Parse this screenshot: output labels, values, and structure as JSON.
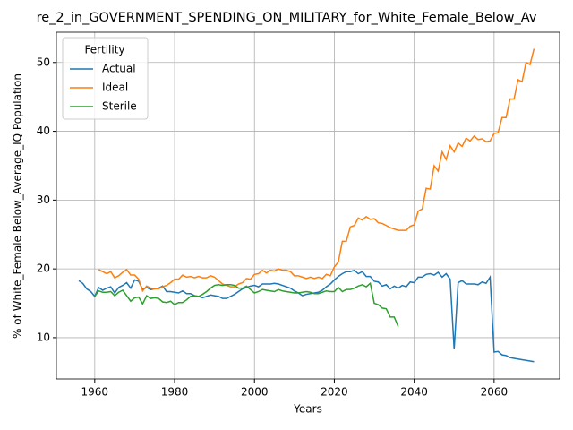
{
  "chart_data": {
    "type": "line",
    "title": "re_2_in_GOVERNMENT_SPENDING_ON_MILITARY_for_White_Female_Below_Av",
    "xlabel": "Years",
    "ylabel": "% of White_Female Below_Average_IQ Population",
    "legend_title": "Fertility",
    "legend": "upper left",
    "grid": true,
    "xlim": [
      1950.4,
      2076.4
    ],
    "ylim": [
      4.0,
      54.4
    ],
    "xticks": [
      1960,
      1980,
      2000,
      2020,
      2040,
      2060
    ],
    "yticks": [
      10,
      20,
      30,
      40,
      50
    ],
    "x": [
      1956,
      1957,
      1958,
      1959,
      1960,
      1961,
      1962,
      1963,
      1964,
      1965,
      1966,
      1967,
      1968,
      1969,
      1970,
      1971,
      1972,
      1973,
      1974,
      1975,
      1976,
      1977,
      1978,
      1979,
      1980,
      1981,
      1982,
      1983,
      1984,
      1985,
      1986,
      1987,
      1988,
      1989,
      1990,
      1991,
      1992,
      1993,
      1994,
      1995,
      1996,
      1997,
      1998,
      1999,
      2000,
      2001,
      2002,
      2003,
      2004,
      2005,
      2006,
      2007,
      2008,
      2009,
      2010,
      2011,
      2012,
      2013,
      2014,
      2015,
      2016,
      2017,
      2018,
      2019,
      2020,
      2021,
      2022,
      2023,
      2024,
      2025,
      2026,
      2027,
      2028,
      2029,
      2030,
      2031,
      2032,
      2033,
      2034,
      2035,
      2036,
      2037,
      2038,
      2039,
      2040,
      2041,
      2042,
      2043,
      2044,
      2045,
      2046,
      2047,
      2048,
      2049,
      2050,
      2051,
      2052,
      2053,
      2054,
      2055,
      2056,
      2057,
      2058,
      2059,
      2060,
      2061,
      2062,
      2063,
      2064,
      2065,
      2066,
      2067,
      2068,
      2069,
      2070
    ],
    "series": [
      {
        "name": "Actual",
        "color": "#1f77b4",
        "values": [
          18.3,
          17.9,
          17.1,
          16.7,
          16.0,
          17.3,
          16.9,
          17.2,
          17.4,
          16.5,
          17.3,
          17.6,
          18.0,
          17.2,
          18.4,
          18.2,
          17.0,
          17.3,
          17.0,
          17.1,
          17.2,
          17.5,
          16.7,
          16.7,
          16.6,
          16.5,
          16.8,
          16.4,
          16.4,
          16.1,
          16.0,
          15.8,
          16.0,
          16.2,
          16.1,
          16.0,
          15.7,
          15.7,
          16.0,
          16.3,
          16.7,
          17.1,
          17.3,
          17.5,
          17.6,
          17.4,
          17.8,
          17.8,
          17.8,
          17.9,
          17.8,
          17.6,
          17.4,
          17.2,
          16.8,
          16.5,
          16.1,
          16.3,
          16.4,
          16.5,
          16.6,
          16.9,
          17.4,
          17.8,
          18.4,
          18.9,
          19.3,
          19.6,
          19.6,
          19.8,
          19.3,
          19.6,
          18.9,
          18.9,
          18.2,
          18.1,
          17.5,
          17.7,
          17.1,
          17.5,
          17.2,
          17.6,
          17.4,
          18.1,
          18.0,
          18.8,
          18.8,
          19.2,
          19.3,
          19.1,
          19.5,
          18.8,
          19.3,
          18.5,
          8.3,
          18.0,
          18.3,
          17.8,
          17.8,
          17.8,
          17.7,
          18.1,
          17.9,
          18.8,
          7.9,
          8.0,
          7.5,
          7.4,
          7.1,
          7.0,
          6.9,
          6.8,
          6.7,
          6.6,
          6.5
        ]
      },
      {
        "name": "Ideal",
        "color": "#ff7f0e",
        "values": [
          null,
          null,
          null,
          null,
          null,
          19.9,
          19.6,
          19.3,
          19.6,
          18.7,
          19.0,
          19.5,
          19.9,
          19.1,
          19.1,
          18.5,
          16.8,
          17.5,
          17.2,
          17.1,
          17.1,
          17.4,
          17.6,
          18.0,
          18.5,
          18.5,
          19.1,
          18.8,
          18.9,
          18.7,
          18.9,
          18.7,
          18.7,
          19.0,
          18.8,
          18.3,
          17.8,
          17.6,
          17.4,
          17.4,
          17.8,
          18.0,
          18.6,
          18.5,
          19.2,
          19.3,
          19.8,
          19.4,
          19.8,
          19.7,
          20.0,
          19.8,
          19.8,
          19.6,
          19.0,
          19.0,
          18.8,
          18.6,
          18.8,
          18.6,
          18.8,
          18.6,
          19.2,
          19.0,
          20.3,
          21.0,
          24.0,
          24.0,
          26.1,
          26.3,
          27.4,
          27.1,
          27.6,
          27.2,
          27.3,
          26.7,
          26.6,
          26.3,
          26.0,
          25.8,
          25.6,
          25.6,
          25.6,
          26.2,
          26.4,
          28.4,
          28.7,
          31.7,
          31.6,
          35.0,
          34.2,
          37.0,
          35.9,
          37.9,
          37.0,
          38.3,
          37.8,
          39.0,
          38.6,
          39.3,
          38.8,
          38.9,
          38.5,
          38.6,
          39.7,
          39.8,
          42.0,
          42.0,
          44.7,
          44.7,
          47.5,
          47.2,
          50.0,
          49.7,
          52.0
        ]
      },
      {
        "name": "Sterile",
        "color": "#2ca02c",
        "values": [
          null,
          null,
          null,
          null,
          16.0,
          16.8,
          16.6,
          16.6,
          16.7,
          16.1,
          16.6,
          16.9,
          16.1,
          15.3,
          15.8,
          15.9,
          14.9,
          16.1,
          15.7,
          15.8,
          15.7,
          15.2,
          15.1,
          15.3,
          14.8,
          15.1,
          15.1,
          15.5,
          16.0,
          16.1,
          16.0,
          16.3,
          16.7,
          17.2,
          17.6,
          17.7,
          17.6,
          17.7,
          17.7,
          17.6,
          17.2,
          17.2,
          17.5,
          17.0,
          16.5,
          16.7,
          17.0,
          16.9,
          16.8,
          16.7,
          17.0,
          16.8,
          16.7,
          16.6,
          16.5,
          16.5,
          16.6,
          16.7,
          16.6,
          16.4,
          16.4,
          16.6,
          16.8,
          16.7,
          16.7,
          17.3,
          16.7,
          17.0,
          17.0,
          17.2,
          17.5,
          17.7,
          17.4,
          17.9,
          15.0,
          14.8,
          14.3,
          14.2,
          13.0,
          13.0,
          11.6,
          null,
          null,
          null,
          null,
          null,
          null,
          null,
          null,
          null,
          null,
          null,
          null,
          null,
          null,
          null,
          null,
          null,
          null,
          null,
          null,
          null,
          null,
          null,
          null,
          null,
          null,
          null,
          null,
          null,
          null,
          null,
          null,
          null,
          null
        ]
      }
    ]
  }
}
